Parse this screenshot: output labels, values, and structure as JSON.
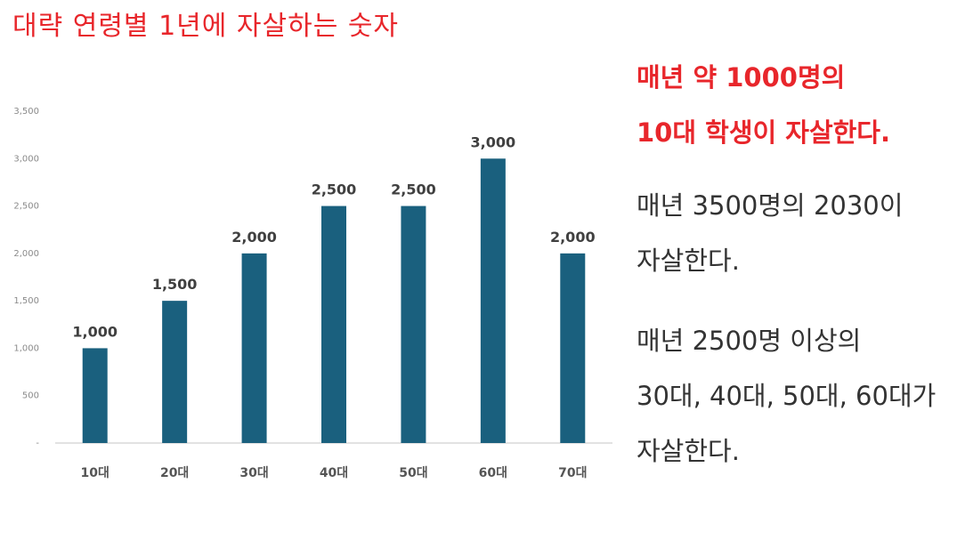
{
  "title": "대략 연령별 1년에 자살하는 숫자",
  "headline": [
    "매년 약 1000명의",
    "10대 학생이 자살한다."
  ],
  "paragraphs": [
    [
      "매년 3500명의 2030이",
      "자살한다."
    ],
    [
      "매년 2500명 이상의",
      "30대, 40대, 50대, 60대가",
      "자살한다."
    ]
  ],
  "colors": {
    "bar": "#1a607e",
    "title": "#e8262b"
  },
  "chart_data": {
    "type": "bar",
    "title": "",
    "xlabel": "",
    "ylabel": "",
    "categories": [
      "10대",
      "20대",
      "30대",
      "40대",
      "50대",
      "60대",
      "70대"
    ],
    "values": [
      1000,
      1500,
      2000,
      2500,
      2500,
      3000,
      2000
    ],
    "value_labels": [
      "1,000",
      "1,500",
      "2,000",
      "2,500",
      "2,500",
      "3,000",
      "2,000"
    ],
    "ylim": [
      0,
      3500
    ],
    "yticks": [
      0,
      500,
      1000,
      1500,
      2000,
      2500,
      3000,
      3500
    ],
    "ytick_labels": [
      "-",
      "500",
      "1,000",
      "1,500",
      "2,000",
      "2,500",
      "3,000",
      "3,500"
    ],
    "grid": false,
    "legend": "none"
  }
}
